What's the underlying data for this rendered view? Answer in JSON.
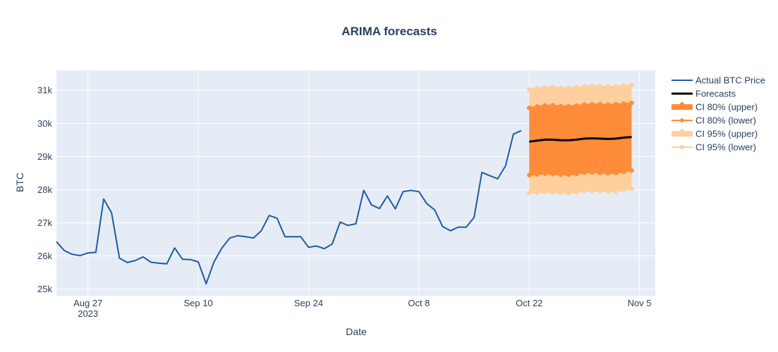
{
  "chart_data": {
    "type": "line",
    "title": "ARIMA forecasts",
    "xlabel": "Date",
    "ylabel": "BTC",
    "x_range": [
      "2023-08-23",
      "2023-11-07"
    ],
    "ylim": [
      24800,
      31600
    ],
    "grid": true,
    "legend_position": "right",
    "x_ticks": [
      {
        "date": "2023-08-27",
        "label": "Aug 27",
        "sublabel": "2023"
      },
      {
        "date": "2023-09-10",
        "label": "Sep 10"
      },
      {
        "date": "2023-09-24",
        "label": "Sep 24"
      },
      {
        "date": "2023-10-08",
        "label": "Oct 8"
      },
      {
        "date": "2023-10-22",
        "label": "Oct 22"
      },
      {
        "date": "2023-11-05",
        "label": "Nov 5"
      }
    ],
    "y_ticks": [
      {
        "value": 25000,
        "label": "25k"
      },
      {
        "value": 26000,
        "label": "26k"
      },
      {
        "value": 27000,
        "label": "27k"
      },
      {
        "value": 28000,
        "label": "28k"
      },
      {
        "value": 29000,
        "label": "29k"
      },
      {
        "value": 30000,
        "label": "30k"
      },
      {
        "value": 31000,
        "label": "31k"
      }
    ],
    "actual": {
      "name": "Actual BTC Price",
      "color": "#1f5ba5",
      "start_date": "2023-08-23",
      "values": [
        26430,
        26160,
        26050,
        26010,
        26090,
        26110,
        27720,
        27300,
        25930,
        25800,
        25860,
        25970,
        25810,
        25780,
        25760,
        26240,
        25900,
        25890,
        25820,
        25160,
        25820,
        26240,
        26540,
        26610,
        26580,
        26540,
        26760,
        27220,
        27140,
        26580,
        26580,
        26580,
        26260,
        26300,
        26220,
        26360,
        27020,
        26920,
        26970,
        27980,
        27540,
        27430,
        27810,
        27420,
        27940,
        27980,
        27940,
        27580,
        27390,
        26890,
        26760,
        26870,
        26870,
        27160,
        28520,
        28420,
        28330,
        28720,
        29680,
        29780
      ]
    },
    "forecast": {
      "name": "Forecasts",
      "color": "#000000",
      "start_date": "2023-10-22",
      "values": [
        29450,
        29480,
        29510,
        29510,
        29490,
        29490,
        29510,
        29540,
        29550,
        29540,
        29530,
        29540,
        29570,
        29590
      ],
      "ci80_upper": [
        30470,
        30510,
        30540,
        30550,
        30520,
        30520,
        30540,
        30570,
        30580,
        30580,
        30570,
        30580,
        30600,
        30620
      ],
      "ci80_lower": [
        28440,
        28460,
        28480,
        28470,
        28450,
        28450,
        28470,
        28510,
        28520,
        28500,
        28490,
        28500,
        28540,
        28580
      ],
      "ci95_upper": [
        31020,
        31060,
        31090,
        31100,
        31070,
        31070,
        31090,
        31120,
        31130,
        31120,
        31110,
        31120,
        31140,
        31160
      ],
      "ci95_lower": [
        27900,
        27910,
        27930,
        27920,
        27900,
        27900,
        27920,
        27960,
        27970,
        27960,
        27940,
        27950,
        27990,
        28030
      ]
    },
    "legend": [
      {
        "label": "Actual BTC Price",
        "style": "line",
        "color": "#1f5ba5"
      },
      {
        "label": "Forecasts",
        "style": "thick-line",
        "color": "#000000"
      },
      {
        "label": "CI 80% (upper)",
        "style": "band",
        "color": "#ff8c3a"
      },
      {
        "label": "CI 80% (lower)",
        "style": "line-marker",
        "color": "#ff8c3a"
      },
      {
        "label": "CI 95% (upper)",
        "style": "band",
        "color": "#ffcf9e"
      },
      {
        "label": "CI 95% (lower)",
        "style": "line-marker",
        "color": "#ffcf9e"
      }
    ],
    "colors": {
      "plot_bg": "#e5ecf6",
      "grid": "#ffffff",
      "ci80": "#ff8c3a",
      "ci95": "#ffcf9e"
    }
  }
}
